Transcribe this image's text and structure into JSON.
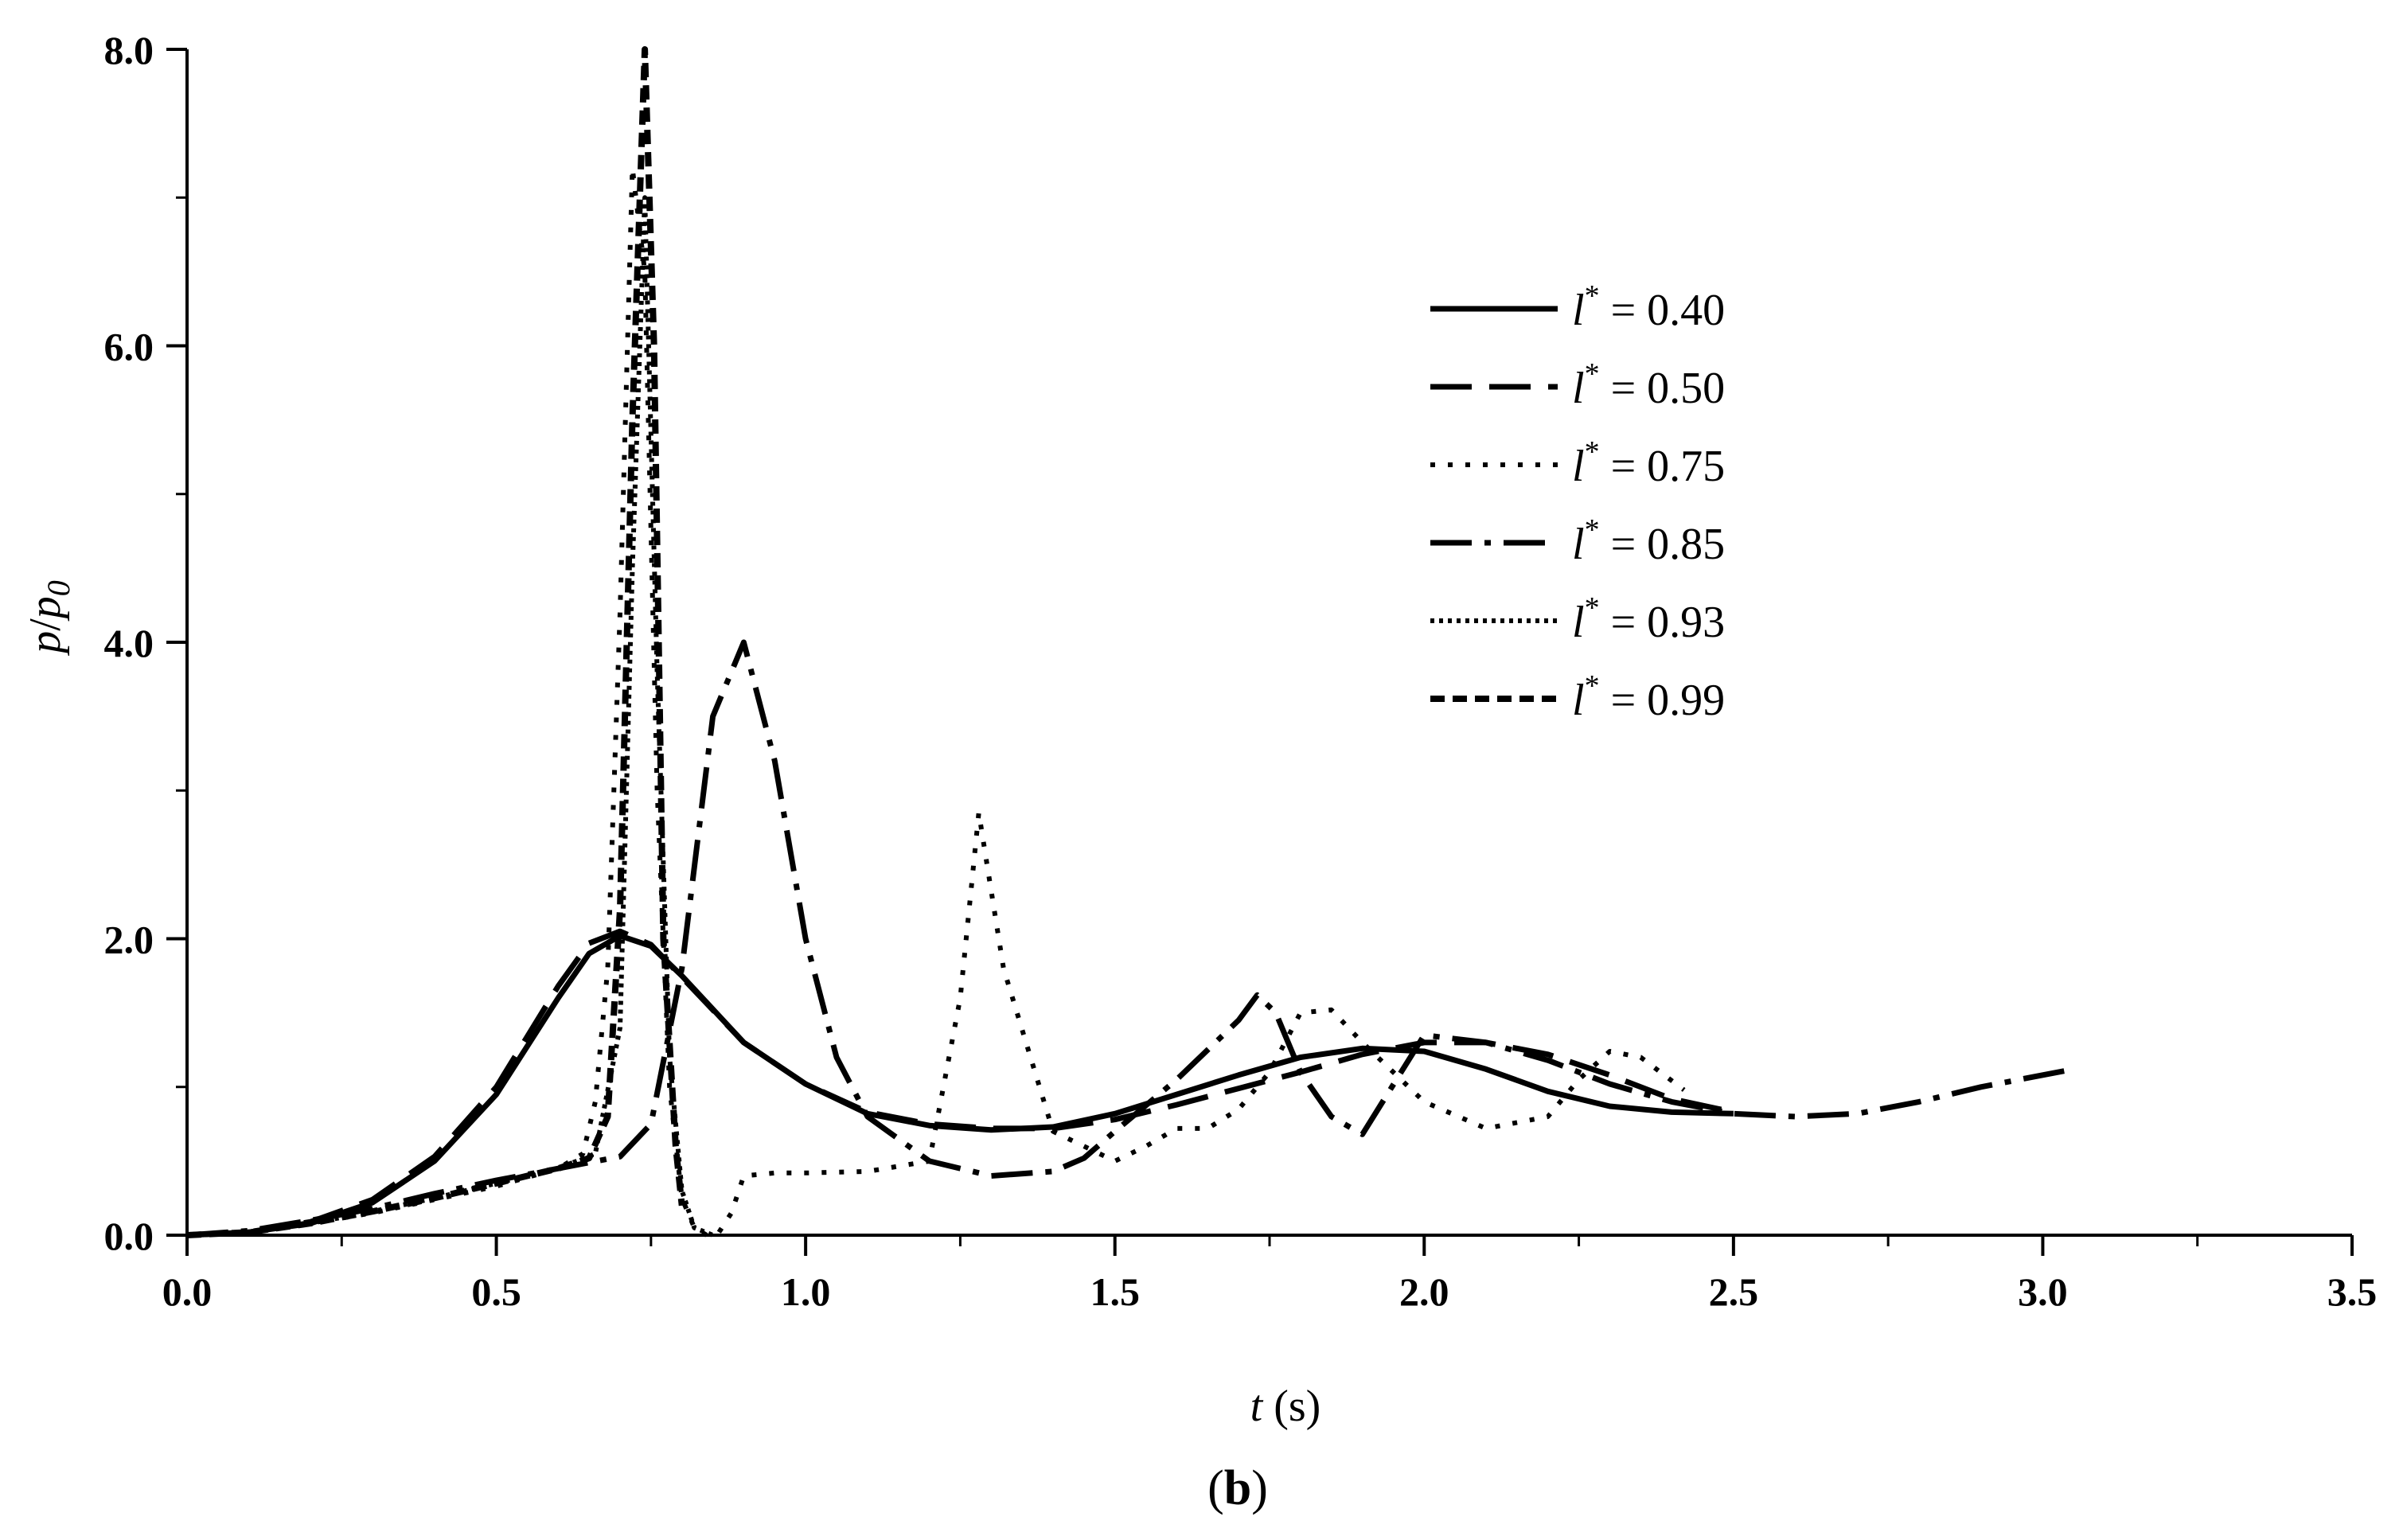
{
  "panel_label": {
    "open": "(",
    "letter": "b",
    "close": ")"
  },
  "chart_data": {
    "type": "line",
    "title": "",
    "xlabel": {
      "var": "t",
      "unit": " (s)"
    },
    "ylabel": {
      "var": "p",
      "sep": "/",
      "var2": "p",
      "sub": "0"
    },
    "xlim": [
      0,
      3.5
    ],
    "ylim": [
      0,
      8
    ],
    "xticks": [
      0,
      0.5,
      1.0,
      1.5,
      2.0,
      2.5,
      3.0,
      3.5
    ],
    "xtick_labels": [
      "0.0",
      "0.5",
      "1.0",
      "1.5",
      "2.0",
      "2.5",
      "3.0",
      "3.5"
    ],
    "yticks": [
      0,
      2,
      4,
      6,
      8
    ],
    "ytick_labels": [
      "0.0",
      "2.0",
      "4.0",
      "6.0",
      "8.0"
    ],
    "grid": false,
    "legend_position": "top-right",
    "series": [
      {
        "name": "l* = 0.40",
        "label": {
          "var": "l",
          "sup": "*",
          "rest": " = 0.40"
        },
        "style": "solid",
        "x": [
          0,
          0.1,
          0.2,
          0.3,
          0.4,
          0.5,
          0.6,
          0.65,
          0.7,
          0.75,
          0.8,
          0.9,
          1.0,
          1.1,
          1.2,
          1.3,
          1.4,
          1.5,
          1.6,
          1.7,
          1.8,
          1.9,
          2.0,
          2.1,
          2.2,
          2.3,
          2.4,
          2.5
        ],
        "y": [
          0,
          0.02,
          0.08,
          0.22,
          0.5,
          0.95,
          1.6,
          1.9,
          2.02,
          1.95,
          1.75,
          1.3,
          1.02,
          0.82,
          0.74,
          0.71,
          0.73,
          0.82,
          0.95,
          1.08,
          1.2,
          1.26,
          1.24,
          1.12,
          0.97,
          0.87,
          0.83,
          0.82
        ]
      },
      {
        "name": "l* = 0.50",
        "label": {
          "var": "l",
          "sup": "*",
          "rest": " = 0.50"
        },
        "style": "dashed",
        "x": [
          0,
          0.1,
          0.2,
          0.3,
          0.4,
          0.5,
          0.6,
          0.65,
          0.7,
          0.75,
          0.8,
          0.9,
          1.0,
          1.1,
          1.2,
          1.3,
          1.4,
          1.5,
          1.6,
          1.7,
          1.8,
          1.9,
          2.0,
          2.1,
          2.2,
          2.3,
          2.4,
          2.5
        ],
        "y": [
          0,
          0.02,
          0.09,
          0.24,
          0.53,
          1.0,
          1.68,
          1.97,
          2.05,
          1.96,
          1.74,
          1.3,
          1.02,
          0.83,
          0.75,
          0.72,
          0.72,
          0.78,
          0.88,
          0.99,
          1.1,
          1.22,
          1.3,
          1.3,
          1.22,
          1.08,
          0.92,
          0.83
        ]
      },
      {
        "name": "l* = 0.75",
        "label": {
          "var": "l",
          "sup": "*",
          "rest": " = 0.75"
        },
        "style": "dotted-sparse",
        "x": [
          0,
          0.1,
          0.2,
          0.3,
          0.4,
          0.5,
          0.6,
          0.64,
          0.66,
          0.68,
          0.7,
          0.72,
          0.74,
          0.76,
          0.78,
          0.8,
          0.82,
          0.84,
          0.86,
          0.88,
          0.9,
          0.95,
          1.0,
          1.1,
          1.2,
          1.25,
          1.28,
          1.32,
          1.4,
          1.5,
          1.55,
          1.6,
          1.65,
          1.7,
          1.75,
          1.8,
          1.85,
          1.9,
          2.0,
          2.1,
          2.2,
          2.25,
          2.3,
          2.35,
          2.42
        ],
        "y": [
          0,
          0.02,
          0.08,
          0.15,
          0.24,
          0.33,
          0.45,
          0.55,
          0.9,
          1.8,
          4.2,
          7.2,
          6.5,
          3.0,
          1.0,
          0.25,
          0.05,
          0.0,
          0.02,
          0.15,
          0.4,
          0.42,
          0.42,
          0.43,
          0.5,
          1.6,
          2.85,
          1.8,
          0.7,
          0.5,
          0.6,
          0.72,
          0.72,
          0.85,
          1.1,
          1.5,
          1.52,
          1.3,
          0.9,
          0.72,
          0.8,
          1.05,
          1.24,
          1.2,
          0.98
        ]
      },
      {
        "name": "l* = 0.85",
        "label": {
          "var": "l",
          "sup": "*",
          "rest": " = 0.85"
        },
        "style": "dash-dot",
        "x": [
          0,
          0.1,
          0.2,
          0.3,
          0.4,
          0.5,
          0.6,
          0.7,
          0.75,
          0.8,
          0.85,
          0.9,
          0.95,
          1.0,
          1.05,
          1.1,
          1.2,
          1.3,
          1.4,
          1.45,
          1.5,
          1.6,
          1.7,
          1.73,
          1.76,
          1.8,
          1.85,
          1.9,
          2.0,
          2.1,
          2.2,
          2.3,
          2.4,
          2.5,
          2.6,
          2.7,
          2.8,
          2.9,
          3.0,
          3.05
        ],
        "y": [
          0,
          0.03,
          0.1,
          0.18,
          0.28,
          0.37,
          0.45,
          0.53,
          0.75,
          1.8,
          3.5,
          4.0,
          3.2,
          2.0,
          1.2,
          0.8,
          0.5,
          0.4,
          0.43,
          0.52,
          0.7,
          1.05,
          1.45,
          1.62,
          1.5,
          1.1,
          0.8,
          0.68,
          1.35,
          1.3,
          1.18,
          1.02,
          0.9,
          0.82,
          0.8,
          0.82,
          0.9,
          1.0,
          1.08,
          1.12
        ]
      },
      {
        "name": "l* = 0.93",
        "label": {
          "var": "l",
          "sup": "*",
          "rest": " = 0.93"
        },
        "style": "dotted-dense",
        "x": [
          0,
          0.1,
          0.2,
          0.3,
          0.4,
          0.5,
          0.6,
          0.66,
          0.7,
          0.72,
          0.74,
          0.76,
          0.78,
          0.8,
          0.82,
          0.85
        ],
        "y": [
          0,
          0.02,
          0.08,
          0.16,
          0.25,
          0.35,
          0.45,
          0.55,
          1.4,
          4.5,
          7.0,
          3.8,
          1.2,
          0.3,
          0.05,
          0.0
        ]
      },
      {
        "name": "l* = 0.99",
        "label": {
          "var": "l",
          "sup": "*",
          "rest": " = 0.99"
        },
        "style": "dashed-short",
        "x": [
          0,
          0.1,
          0.2,
          0.3,
          0.4,
          0.5,
          0.6,
          0.65,
          0.68,
          0.7,
          0.72,
          0.74,
          0.755,
          0.77,
          0.79,
          0.8
        ],
        "y": [
          0,
          0.02,
          0.08,
          0.16,
          0.25,
          0.35,
          0.45,
          0.52,
          0.8,
          2.2,
          5.5,
          8.0,
          6.0,
          2.0,
          0.6,
          0.2
        ]
      }
    ]
  }
}
